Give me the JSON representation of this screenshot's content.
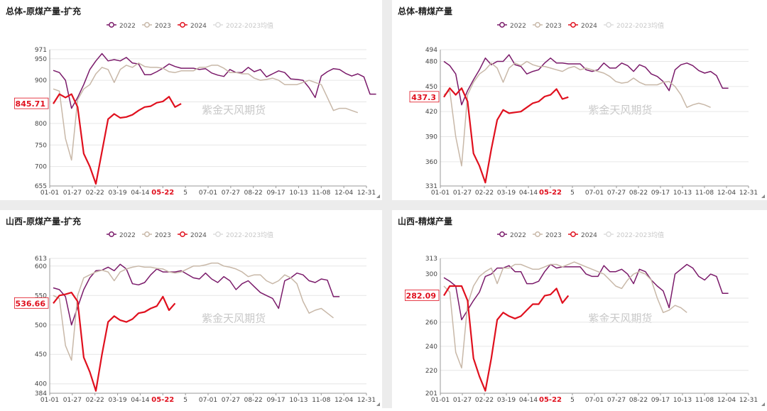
{
  "colors": {
    "c2022": "#7a1a6a",
    "c2023": "#c8b8a8",
    "c2024": "#e0101e",
    "cavg": "#dcdcdc",
    "latest": "#e0101e"
  },
  "watermark": "紫金天风期货",
  "chart_data": [
    {
      "type": "line",
      "title": "总体-原煤产量-扩充",
      "yticks": [
        655,
        700,
        750,
        800,
        850,
        900,
        950,
        971
      ],
      "ylim": [
        655,
        971
      ],
      "xticks": [
        "01-01",
        "01-27",
        "02-22",
        "03-19",
        "04-14",
        "05-22",
        "5",
        "07-01",
        "07-27",
        "08-22",
        "09-17",
        "10-13",
        "11-08",
        "12-04",
        "12-31"
      ],
      "latest_label": "845.71",
      "legend": [
        "2022",
        "2023",
        "2024",
        "2022-2023均值"
      ],
      "series": [
        {
          "name": "2022",
          "values": [
            923,
            918,
            900,
            835,
            860,
            890,
            925,
            945,
            962,
            945,
            948,
            945,
            953,
            940,
            938,
            913,
            913,
            920,
            928,
            938,
            932,
            928,
            928,
            928,
            925,
            927,
            917,
            912,
            909,
            925,
            918,
            918,
            930,
            920,
            925,
            908,
            915,
            922,
            918,
            903,
            902,
            900,
            883,
            860,
            910,
            920,
            927,
            925,
            916,
            910,
            915,
            908,
            868,
            868
          ]
        },
        {
          "name": "2023",
          "values": [
            880,
            875,
            765,
            715,
            855,
            880,
            890,
            915,
            930,
            925,
            895,
            925,
            935,
            930,
            940,
            932,
            930,
            930,
            928,
            920,
            918,
            922,
            922,
            922,
            930,
            930,
            935,
            935,
            928,
            918,
            918,
            915,
            915,
            905,
            900,
            902,
            905,
            900,
            890,
            890,
            890,
            895,
            900,
            895,
            890,
            860,
            830,
            835,
            835,
            830,
            825
          ]
        },
        {
          "name": "2024",
          "values": [
            845.71,
            868,
            860,
            868,
            838,
            730,
            700,
            660,
            735,
            810,
            822,
            813,
            815,
            820,
            830,
            838,
            840,
            848,
            851,
            862,
            838,
            845.71
          ]
        },
        {
          "name": "2022-2023均值",
          "values": []
        }
      ]
    },
    {
      "type": "line",
      "title": "总体-精煤产量",
      "yticks": [
        331,
        360,
        390,
        420,
        450,
        480,
        494
      ],
      "ylim": [
        331,
        494
      ],
      "xticks": [
        "01-01",
        "01-27",
        "02-22",
        "03-19",
        "04-14",
        "05-22",
        "5",
        "07-01",
        "07-27",
        "08-22",
        "09-17",
        "10-13",
        "11-08",
        "12-04",
        "12-31"
      ],
      "latest_label": "437.3",
      "legend": [
        "2022",
        "2023",
        "2024",
        "2022-2023均值"
      ],
      "series": [
        {
          "name": "2022",
          "values": [
            480,
            475,
            465,
            428,
            445,
            458,
            470,
            484,
            476,
            480,
            480,
            488,
            476,
            474,
            465,
            468,
            470,
            478,
            484,
            478,
            478,
            477,
            477,
            477,
            470,
            468,
            470,
            478,
            472,
            472,
            478,
            475,
            468,
            476,
            473,
            465,
            462,
            456,
            445,
            470,
            476,
            478,
            475,
            469,
            466,
            468,
            463,
            448,
            448
          ]
        },
        {
          "name": "2023",
          "values": [
            440,
            445,
            390,
            355,
            440,
            455,
            465,
            470,
            478,
            472,
            455,
            472,
            478,
            475,
            480,
            476,
            474,
            474,
            472,
            470,
            468,
            472,
            474,
            470,
            472,
            470,
            468,
            466,
            462,
            456,
            454,
            455,
            460,
            455,
            452,
            452,
            452,
            455,
            456,
            450,
            440,
            425,
            428,
            430,
            428,
            425
          ]
        },
        {
          "name": "2024",
          "values": [
            437.3,
            448,
            440,
            448,
            432,
            370,
            355,
            335,
            375,
            410,
            422,
            418,
            419,
            420,
            425,
            430,
            432,
            438,
            440,
            447,
            435,
            437.3
          ]
        },
        {
          "name": "2022-2023均值",
          "values": []
        }
      ]
    },
    {
      "type": "line",
      "title": "山西-原煤产量-扩充",
      "yticks": [
        384,
        400,
        450,
        500,
        550,
        600,
        613
      ],
      "ylim": [
        384,
        613
      ],
      "xticks": [
        "01-01",
        "01-27",
        "02-22",
        "03-19",
        "04-14",
        "05-22",
        "5",
        "07-01",
        "07-27",
        "08-22",
        "09-17",
        "10-13",
        "11-08",
        "12-04",
        "12-31"
      ],
      "latest_label": "536.66",
      "legend": [
        "2022",
        "2023",
        "2024",
        "2022-2023均值"
      ],
      "series": [
        {
          "name": "2022",
          "values": [
            563,
            560,
            548,
            500,
            530,
            560,
            580,
            592,
            593,
            598,
            592,
            603,
            595,
            570,
            568,
            572,
            585,
            595,
            590,
            590,
            590,
            592,
            586,
            580,
            578,
            588,
            578,
            572,
            582,
            575,
            560,
            570,
            575,
            565,
            555,
            550,
            545,
            528,
            575,
            580,
            588,
            585,
            575,
            572,
            578,
            576,
            548,
            548
          ]
        },
        {
          "name": "2023",
          "values": [
            550,
            545,
            465,
            440,
            550,
            580,
            585,
            590,
            593,
            590,
            575,
            590,
            595,
            598,
            600,
            598,
            598,
            596,
            595,
            590,
            588,
            590,
            595,
            600,
            600,
            602,
            605,
            605,
            600,
            598,
            595,
            590,
            582,
            585,
            585,
            575,
            570,
            575,
            585,
            580,
            570,
            540,
            520,
            525,
            528,
            520,
            512
          ]
        },
        {
          "name": "2024",
          "values": [
            536.66,
            550,
            552,
            555,
            540,
            445,
            420,
            388,
            450,
            505,
            515,
            508,
            505,
            510,
            520,
            522,
            528,
            532,
            548,
            525,
            536.66
          ]
        },
        {
          "name": "2022-2023均值",
          "values": []
        }
      ]
    },
    {
      "type": "line",
      "title": "山西-精煤产量",
      "yticks": [
        201,
        220,
        240,
        260,
        280,
        300,
        313
      ],
      "ylim": [
        201,
        313
      ],
      "xticks": [
        "01-01",
        "01-27",
        "02-22",
        "03-19",
        "04-14",
        "05-22",
        "5",
        "07-01",
        "07-27",
        "08-22",
        "09-17",
        "10-13",
        "11-08",
        "12-04",
        "12-31"
      ],
      "latest_label": "282.09",
      "legend": [
        "2022",
        "2023",
        "2024",
        "2022-2023均值"
      ],
      "series": [
        {
          "name": "2022",
          "values": [
            297,
            294,
            290,
            262,
            270,
            278,
            285,
            298,
            300,
            305,
            305,
            307,
            302,
            302,
            292,
            292,
            294,
            302,
            308,
            305,
            306,
            306,
            306,
            306,
            300,
            298,
            298,
            307,
            302,
            302,
            304,
            300,
            292,
            304,
            302,
            295,
            290,
            286,
            272,
            300,
            304,
            308,
            305,
            298,
            295,
            300,
            298,
            284,
            284
          ]
        },
        {
          "name": "2023",
          "values": [
            290,
            285,
            235,
            222,
            275,
            290,
            298,
            302,
            305,
            292,
            305,
            305,
            308,
            308,
            306,
            304,
            304,
            306,
            308,
            308,
            306,
            308,
            310,
            308,
            306,
            304,
            302,
            300,
            295,
            290,
            288,
            295,
            300,
            302,
            300,
            295,
            280,
            268,
            270,
            274,
            272,
            268
          ]
        },
        {
          "name": "2024",
          "values": [
            282.09,
            290,
            290,
            290,
            278,
            230,
            215,
            203,
            230,
            262,
            268,
            265,
            263,
            265,
            270,
            275,
            275,
            282,
            283,
            288,
            276,
            282.09
          ]
        },
        {
          "name": "2022-2023均值",
          "values": []
        }
      ]
    }
  ]
}
